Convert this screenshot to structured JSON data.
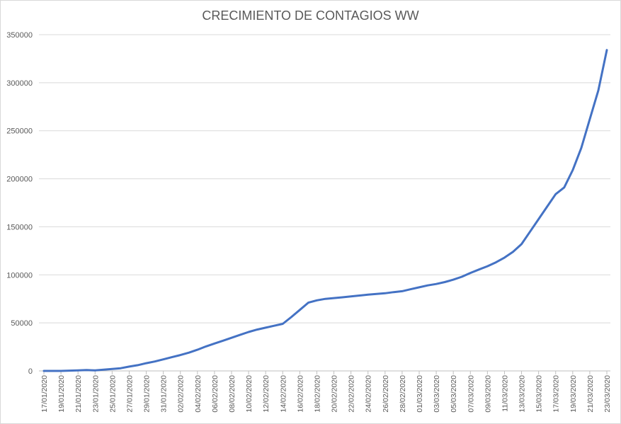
{
  "chart_data": {
    "type": "line",
    "title": "CRECIMIENTO DE CONTAGIOS WW",
    "xlabel": "",
    "ylabel": "",
    "ylim": [
      0,
      350000
    ],
    "yticks": [
      "0",
      "50000",
      "100000",
      "150000",
      "200000",
      "250000",
      "300000",
      "350000"
    ],
    "xtick_labels": [
      "17/01/2020",
      "19/01/2020",
      "21/01/2020",
      "23/01/2020",
      "25/01/2020",
      "27/01/2020",
      "29/01/2020",
      "31/01/2020",
      "02/02/2020",
      "04/02/2020",
      "06/02/2020",
      "08/02/2020",
      "10/02/2020",
      "12/02/2020",
      "14/02/2020",
      "16/02/2020",
      "18/02/2020",
      "20/02/2020",
      "22/02/2020",
      "24/02/2020",
      "26/02/2020",
      "28/02/2020",
      "01/03/2020",
      "03/03/2020",
      "05/03/2020",
      "07/03/2020",
      "09/03/2020",
      "11/03/2020",
      "13/03/2020",
      "15/03/2020",
      "17/03/2020",
      "19/03/2020",
      "21/03/2020",
      "23/03/2020"
    ],
    "grid": true,
    "legend": "none",
    "line_color": "#4472c4",
    "series": [
      {
        "values": [
          0,
          0,
          0,
          300,
          600,
          900,
          600,
          1300,
          2000,
          2800,
          4500,
          6000,
          8000,
          9800,
          12000,
          14300,
          16500,
          19000,
          22000,
          25500,
          28500,
          31500,
          34500,
          37500,
          40500,
          43000,
          45000,
          47000,
          49000,
          56000,
          63500,
          71000,
          73500,
          75000,
          75800,
          76600,
          77500,
          78500,
          79400,
          80100,
          80800,
          82000,
          83000,
          85000,
          87000,
          89000,
          90500,
          92500,
          95000,
          98000,
          102000,
          105500,
          109000,
          113000,
          118000,
          124000,
          132000,
          145000,
          158000,
          171000,
          184000,
          191000,
          209000,
          232000,
          262000,
          292000,
          334000
        ]
      }
    ]
  }
}
